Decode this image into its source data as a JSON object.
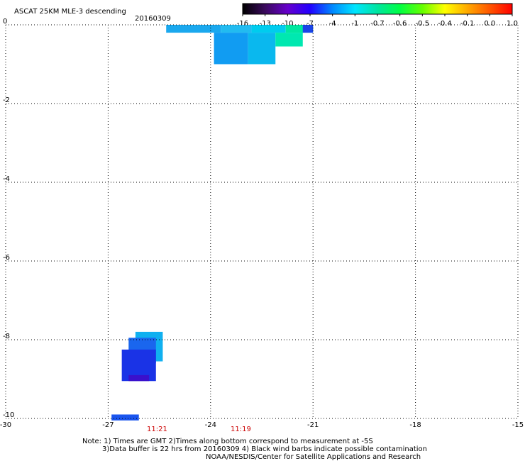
{
  "header": {
    "title": "ASCAT 25KM MLE-3 descending",
    "date": "20160309"
  },
  "colorbar": {
    "labels": [
      "-16",
      "-13",
      "-10",
      "-7",
      "-4",
      "-1",
      "-0.7",
      "-0.6",
      "-0.5",
      "-0.4",
      "-0.1",
      "0.0",
      "1.0"
    ],
    "colors": [
      "#000000",
      "#3a0a5c",
      "#6600cc",
      "#2200ff",
      "#0088ff",
      "#00e5ff",
      "#00e5a0",
      "#00ff44",
      "#66ff00",
      "#ffff00",
      "#ffaa00",
      "#ff5500",
      "#ff0000"
    ]
  },
  "map": {
    "x_ticks": [
      "-30",
      "-27",
      "-24",
      "-21",
      "-18",
      "-15"
    ],
    "y_ticks": [
      "0",
      "-2",
      "-4",
      "-6",
      "-8",
      "-10"
    ]
  },
  "times": [
    {
      "label": "11:21",
      "lon": -26.1
    },
    {
      "label": "11:19",
      "lon": -23.6
    }
  ],
  "cells": [
    {
      "lon0": -25.3,
      "lon1": -23.7,
      "lat0": 0.0,
      "lat1": -0.2,
      "color": "#1aa8ee"
    },
    {
      "lon0": -23.7,
      "lon1": -22.8,
      "lat0": 0.0,
      "lat1": -0.2,
      "color": "#22bbf0"
    },
    {
      "lon0": -22.8,
      "lon1": -21.8,
      "lat0": 0.0,
      "lat1": -0.2,
      "color": "#00ccee"
    },
    {
      "lon0": -21.8,
      "lon1": -21.0,
      "lat0": 0.0,
      "lat1": -0.2,
      "color": "#00e8a0"
    },
    {
      "lon0": -21.3,
      "lon1": -21.0,
      "lat0": 0.0,
      "lat1": -0.2,
      "color": "#1a44e8"
    },
    {
      "lon0": -23.9,
      "lon1": -22.9,
      "lat0": -0.2,
      "lat1": -1.0,
      "color": "#119cf2"
    },
    {
      "lon0": -22.9,
      "lon1": -22.1,
      "lat0": -0.2,
      "lat1": -1.0,
      "color": "#0ab8ee"
    },
    {
      "lon0": -22.1,
      "lon1": -21.3,
      "lat0": -0.2,
      "lat1": -0.55,
      "color": "#00e8b0"
    },
    {
      "lon0": -26.2,
      "lon1": -25.4,
      "lat0": -7.8,
      "lat1": -8.55,
      "color": "#10b0f0"
    },
    {
      "lon0": -26.4,
      "lon1": -25.6,
      "lat0": -7.95,
      "lat1": -8.6,
      "color": "#1a66ee"
    },
    {
      "lon0": -26.6,
      "lon1": -25.6,
      "lat0": -8.25,
      "lat1": -9.05,
      "color": "#1a33e6"
    },
    {
      "lon0": -26.4,
      "lon1": -25.8,
      "lat0": -8.9,
      "lat1": -9.05,
      "color": "#3a10cc"
    },
    {
      "lon0": -26.9,
      "lon1": -26.1,
      "lat0": -9.9,
      "lat1": -10.05,
      "color": "#1a55ee"
    }
  ],
  "notes": [
    "Note: 1) Times are GMT 2)Times along bottom correspond to measurement at -5S",
    "3)Data buffer is 22 hrs from 20160309 4) Black wind barbs indicate possible contamination",
    "NOAA/NESDIS/Center for Satellite Applications and Research"
  ]
}
